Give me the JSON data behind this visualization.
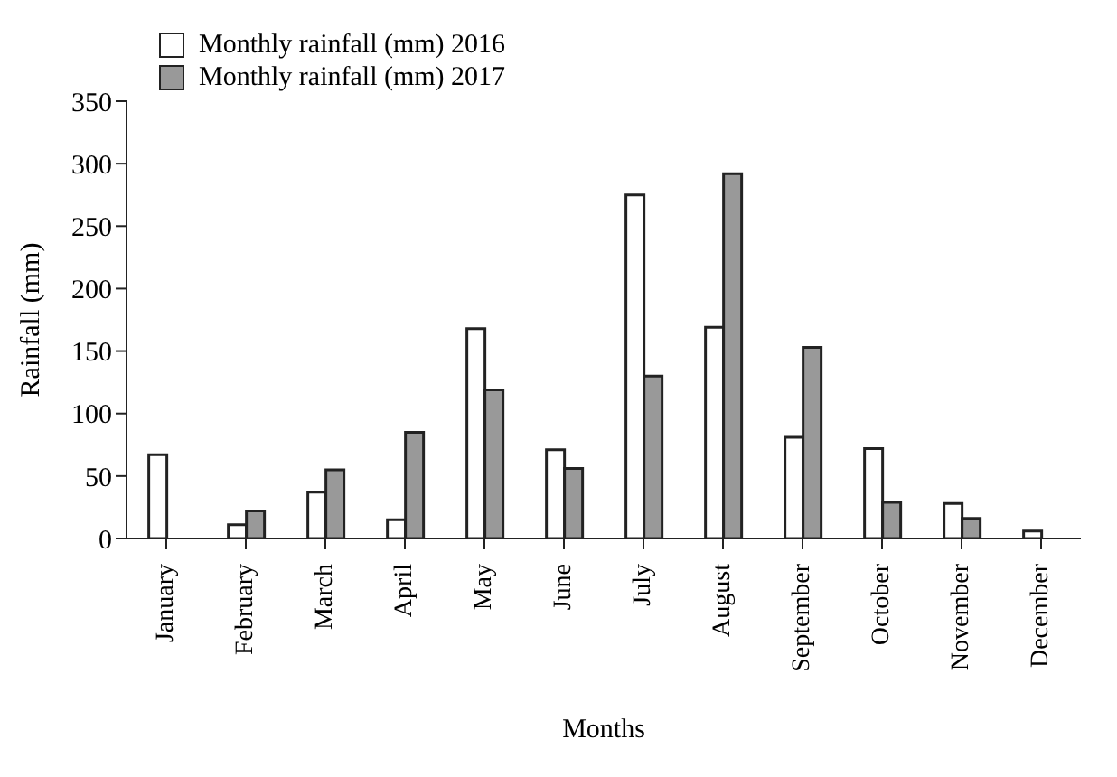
{
  "chart_data": {
    "type": "bar",
    "xlabel": "Months",
    "ylabel": "Rainfall (mm)",
    "categories": [
      "January",
      "February",
      "March",
      "April",
      "May",
      "June",
      "July",
      "August",
      "September",
      "October",
      "November",
      "December"
    ],
    "series": [
      {
        "name": "Monthly rainfall (mm) 2016",
        "color": "#ffffff",
        "values": [
          67,
          11,
          37,
          15,
          168,
          71,
          275,
          169,
          81,
          72,
          28,
          6
        ]
      },
      {
        "name": "Monthly rainfall (mm) 2017",
        "color": "#999999",
        "values": [
          0,
          22,
          55,
          85,
          119,
          56,
          130,
          292,
          153,
          29,
          16,
          0
        ]
      }
    ],
    "ylim": [
      0,
      350
    ],
    "yticks": [
      0,
      50,
      100,
      150,
      200,
      250,
      300,
      350
    ],
    "grid": false,
    "legend": "top left"
  }
}
